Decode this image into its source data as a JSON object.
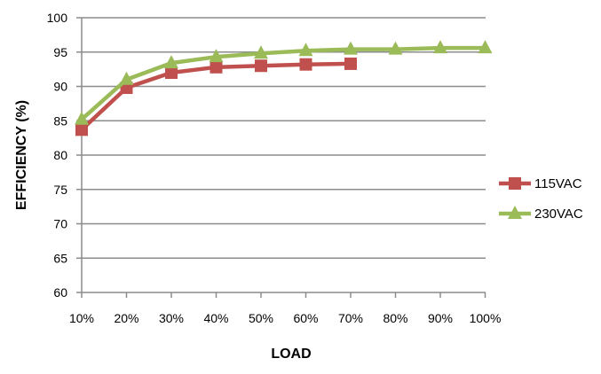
{
  "chart_data": {
    "type": "line",
    "title": "",
    "xlabel": "LOAD",
    "ylabel": "EFFICIENCY (%)",
    "categories": [
      "10%",
      "20%",
      "30%",
      "40%",
      "50%",
      "60%",
      "70%",
      "80%",
      "90%",
      "100%"
    ],
    "yticks": [
      "60",
      "65",
      "70",
      "75",
      "80",
      "85",
      "90",
      "95",
      "100"
    ],
    "ylim": [
      60,
      100
    ],
    "grid": true,
    "legend_position": "right",
    "series": [
      {
        "name": "115VAC",
        "color": "#c0504d",
        "marker": "square",
        "values": [
          83.7,
          89.8,
          92.0,
          92.8,
          93.0,
          93.2,
          93.3,
          null,
          null,
          null
        ]
      },
      {
        "name": "230VAC",
        "color": "#9bbb59",
        "marker": "triangle",
        "values": [
          85.2,
          91.0,
          93.4,
          94.3,
          94.8,
          95.2,
          95.4,
          95.4,
          95.6,
          95.6
        ]
      }
    ]
  }
}
